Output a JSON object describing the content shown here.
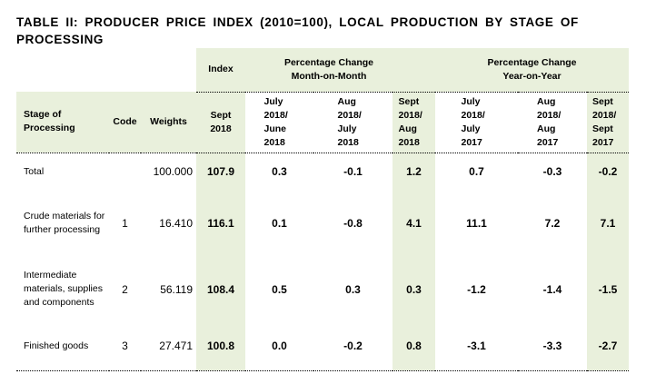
{
  "title": "TABLE II: PRODUCER PRICE INDEX (2010=100), LOCAL PRODUCTION BY STAGE OF PROCESSING",
  "header": {
    "index": "Index",
    "mom": "Percentage Change Month-on-Month",
    "yoy": "Percentage Change Year-on-Year",
    "stage": "Stage of Processing",
    "code": "Code",
    "weights": "Weights",
    "cols": [
      "Sept 2018",
      "July 2018/ June 2018",
      "Aug 2018/ July 2018",
      "Sept 2018/ Aug 2018",
      "July 2018/ July 2017",
      "Aug 2018/ Aug 2017",
      "Sept 2018/ Sept 2017"
    ]
  },
  "rows": [
    {
      "stage": "Total",
      "code": "",
      "weights": "100.000",
      "values": [
        "107.9",
        "0.3",
        "-0.1",
        "1.2",
        "0.7",
        "-0.3",
        "-0.2"
      ]
    },
    {
      "stage": "Crude materials for further processing",
      "code": "1",
      "weights": "16.410",
      "values": [
        "116.1",
        "0.1",
        "-0.8",
        "4.1",
        "11.1",
        "7.2",
        "7.1"
      ]
    },
    {
      "stage": "Intermediate materials, supplies and components",
      "code": "2",
      "weights": "56.119",
      "values": [
        "108.4",
        "0.5",
        "0.3",
        "0.3",
        "-1.2",
        "-1.4",
        "-1.5"
      ]
    },
    {
      "stage": "Finished goods",
      "code": "3",
      "weights": "27.471",
      "values": [
        "100.8",
        "0.0",
        "-0.2",
        "0.8",
        "-3.1",
        "-3.3",
        "-2.7"
      ]
    }
  ],
  "colors": {
    "shade": "#e9f0dc"
  }
}
